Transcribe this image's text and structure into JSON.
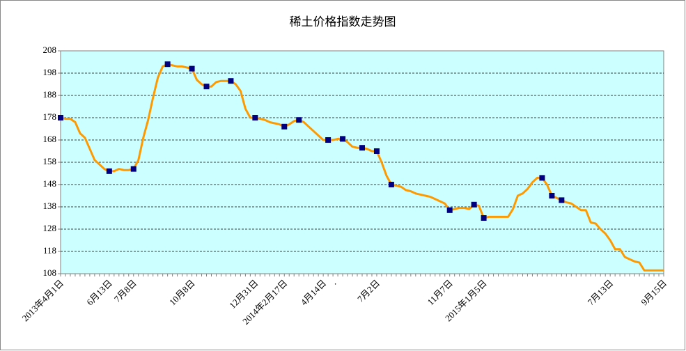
{
  "chart_data": {
    "type": "line",
    "title": "稀土价格指数走势图",
    "categories": [
      "2013年4月1日",
      null,
      null,
      null,
      null,
      null,
      null,
      null,
      null,
      null,
      "6月13日",
      null,
      null,
      null,
      null,
      "7月8日",
      null,
      null,
      null,
      null,
      null,
      null,
      null,
      null,
      null,
      null,
      null,
      "10月8日",
      null,
      null,
      null,
      null,
      null,
      null,
      null,
      null,
      null,
      null,
      null,
      null,
      "12月31日",
      null,
      null,
      null,
      null,
      null,
      "2014年2月17日",
      null,
      null,
      null,
      null,
      null,
      null,
      null,
      "4月14日",
      null,
      ".",
      null,
      null,
      null,
      null,
      null,
      null,
      null,
      null,
      "7月2日",
      null,
      null,
      null,
      null,
      null,
      null,
      null,
      null,
      null,
      null,
      null,
      null,
      null,
      null,
      "11月7日",
      null,
      null,
      null,
      null,
      null,
      null,
      "2015年1月5日",
      null,
      null,
      null,
      null,
      null,
      null,
      null,
      null,
      null,
      null,
      null,
      null,
      null,
      null,
      null,
      null,
      null,
      null,
      null,
      null,
      null,
      null,
      null,
      null,
      null,
      "7月13日",
      null,
      null,
      null,
      null,
      null,
      null,
      null,
      null,
      null,
      null,
      "9月15日"
    ],
    "series": [
      {
        "color": "#ff9900",
        "marker_color": "#000080",
        "values": [
          178,
          177.5,
          177.5,
          176,
          171,
          169,
          164,
          159,
          157,
          155,
          154,
          154,
          155,
          154.5,
          154.5,
          155,
          159,
          169,
          177,
          187,
          196,
          201,
          202,
          201.5,
          201,
          201,
          200.5,
          200,
          195,
          193,
          192,
          192,
          194,
          194.5,
          194.5,
          194.5,
          193,
          190,
          182,
          178,
          178,
          177.5,
          177,
          176,
          175.5,
          175,
          174,
          175,
          176.5,
          177,
          176,
          174,
          172,
          170,
          168,
          168,
          168,
          168.5,
          168.5,
          167,
          165,
          164.5,
          164.5,
          164,
          163,
          163,
          158,
          152,
          148,
          147.5,
          147,
          145.5,
          145,
          144,
          143.5,
          143,
          142.5,
          141.5,
          140.5,
          139.5,
          136.5,
          137,
          137.5,
          137.5,
          137,
          139,
          138.5,
          133,
          133.5,
          133.5,
          133.5,
          133.5,
          133.5,
          137,
          143,
          144,
          146,
          149,
          151,
          151,
          148,
          143,
          142,
          141,
          140,
          139.5,
          138,
          136.5,
          136.5,
          131,
          130.5,
          128,
          126,
          123,
          119,
          119,
          115.5,
          114.5,
          113.5,
          113,
          109.5,
          109.5,
          109.5,
          109.5,
          109.5
        ],
        "markers": [
          0,
          10,
          15,
          22,
          27,
          30,
          35,
          40,
          46,
          49,
          55,
          58,
          62,
          65,
          68,
          80,
          85,
          87,
          99,
          101,
          103
        ]
      }
    ],
    "ylim": [
      108,
      208
    ],
    "yticks": [
      108,
      118,
      128,
      138,
      148,
      158,
      168,
      178,
      188,
      198,
      208
    ],
    "grid": true
  }
}
